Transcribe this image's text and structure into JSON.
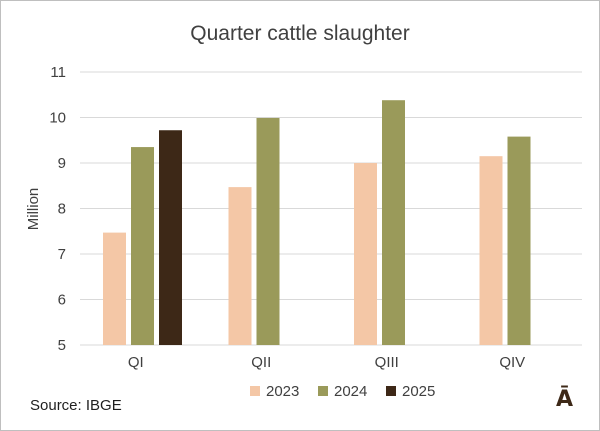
{
  "chart_data": {
    "type": "bar",
    "title": "Quarter cattle slaughter",
    "ylabel": "Million",
    "xlabel": "",
    "categories": [
      "QI",
      "QII",
      "QIII",
      "QIV"
    ],
    "ylim": [
      5,
      11
    ],
    "yticks": [
      "5",
      "6",
      "7",
      "8",
      "9",
      "10",
      "11"
    ],
    "grid": true,
    "legend_position": "bottom",
    "series": [
      {
        "name": "2023",
        "color": "#f4c7a6",
        "values": [
          7.47,
          8.47,
          9.0,
          9.15
        ]
      },
      {
        "name": "2024",
        "color": "#9a9a5a",
        "values": [
          9.35,
          9.99,
          10.38,
          9.58
        ]
      },
      {
        "name": "2025",
        "color": "#3d2817",
        "values": [
          9.72,
          null,
          null,
          null
        ]
      }
    ]
  },
  "footer": {
    "source": "Source: IBGE",
    "logo_text": "Ā"
  }
}
